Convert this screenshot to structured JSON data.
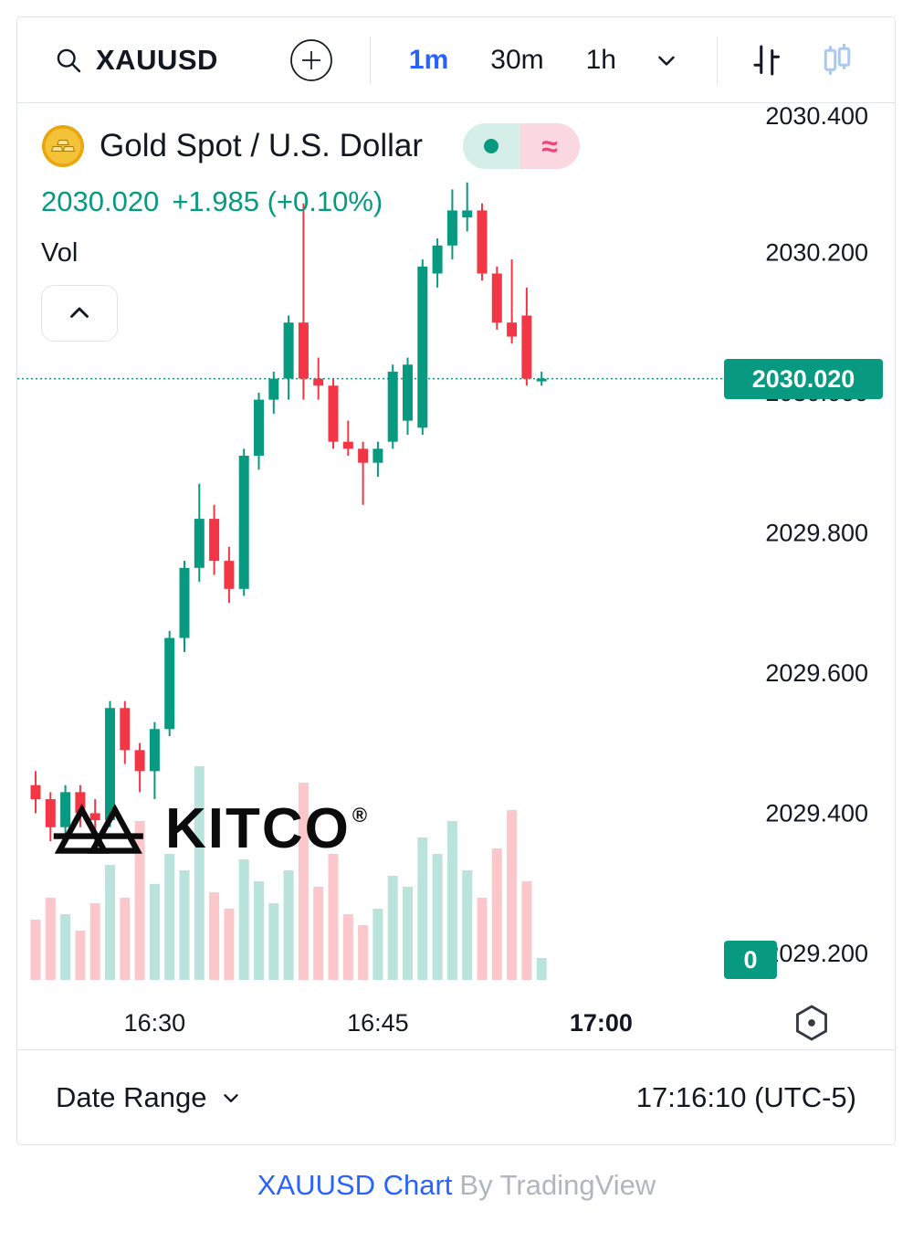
{
  "toolbar": {
    "symbol": "XAUUSD",
    "intervals": [
      {
        "label": "1m",
        "active": true
      },
      {
        "label": "30m",
        "active": false
      },
      {
        "label": "1h",
        "active": false
      }
    ]
  },
  "header": {
    "title": "Gold Spot / U.S. Dollar",
    "price": "2030.020",
    "change": "+1.985 (+0.10%)",
    "vol_label": "Vol",
    "approx": "≈"
  },
  "watermark": {
    "text": "KITCO",
    "reg": "®"
  },
  "axis": {
    "price_badge": "2030.020",
    "vol_badge": "0"
  },
  "bottom_bar": {
    "date_range_label": "Date Range",
    "clock": "17:16:10 (UTC-5)"
  },
  "footer": {
    "link": "XAUUSD Chart",
    "rest": "By TradingView"
  },
  "icons": {
    "search": "magnifier",
    "compare": "plus-circle",
    "interval_menu": "chevron-down",
    "bars_style": "ohlc-bars",
    "candles_style": "candlesticks",
    "collapse": "chevron-up",
    "status": "dot-and-approx",
    "time_settings": "hexagon-dot",
    "date_range": "chevron-down"
  },
  "colors": {
    "up": "#089981",
    "down": "#f23645",
    "accent_blue": "#2962ff",
    "badge": "#089981",
    "border": "#e0e3eb",
    "text": "#131722",
    "footer_muted": "#b2b5be",
    "pill_green_bg": "#d5efe8",
    "pill_pink_bg": "#fbd7e2"
  },
  "chart_data": {
    "type": "candlestick",
    "symbol": "XAUUSD",
    "title": "Gold Spot / U.S. Dollar",
    "interval": "1m",
    "last_price": 2030.02,
    "change": "+1.985",
    "change_pct": "+0.10%",
    "ylim": [
      2029.136,
      2030.413
    ],
    "y_ticks": [
      2030.4,
      2030.2,
      2030.0,
      2029.8,
      2029.6,
      2029.4,
      2029.2
    ],
    "x_ticks": [
      {
        "label": "16:30",
        "i": 8,
        "bold": false
      },
      {
        "label": "16:45",
        "i": 23,
        "bold": false
      },
      {
        "label": "17:00",
        "i": 38,
        "bold": true
      }
    ],
    "legend": "Vol",
    "grid": false,
    "candles": [
      {
        "t": "16:22",
        "o": 2029.44,
        "h": 2029.46,
        "l": 2029.4,
        "c": 2029.42,
        "v": 22
      },
      {
        "t": "16:23",
        "o": 2029.42,
        "h": 2029.43,
        "l": 2029.36,
        "c": 2029.38,
        "v": 30
      },
      {
        "t": "16:24",
        "o": 2029.38,
        "h": 2029.44,
        "l": 2029.37,
        "c": 2029.43,
        "v": 24
      },
      {
        "t": "16:25",
        "o": 2029.43,
        "h": 2029.44,
        "l": 2029.38,
        "c": 2029.4,
        "v": 18
      },
      {
        "t": "16:26",
        "o": 2029.4,
        "h": 2029.42,
        "l": 2029.35,
        "c": 2029.39,
        "v": 28
      },
      {
        "t": "16:27",
        "o": 2029.39,
        "h": 2029.56,
        "l": 2029.38,
        "c": 2029.55,
        "v": 42
      },
      {
        "t": "16:28",
        "o": 2029.55,
        "h": 2029.56,
        "l": 2029.47,
        "c": 2029.49,
        "v": 30
      },
      {
        "t": "16:29",
        "o": 2029.49,
        "h": 2029.5,
        "l": 2029.43,
        "c": 2029.46,
        "v": 58
      },
      {
        "t": "16:30",
        "o": 2029.46,
        "h": 2029.53,
        "l": 2029.42,
        "c": 2029.52,
        "v": 35
      },
      {
        "t": "16:31",
        "o": 2029.52,
        "h": 2029.66,
        "l": 2029.51,
        "c": 2029.65,
        "v": 46
      },
      {
        "t": "16:32",
        "o": 2029.65,
        "h": 2029.76,
        "l": 2029.63,
        "c": 2029.75,
        "v": 40
      },
      {
        "t": "16:33",
        "o": 2029.75,
        "h": 2029.87,
        "l": 2029.73,
        "c": 2029.82,
        "v": 78
      },
      {
        "t": "16:34",
        "o": 2029.82,
        "h": 2029.84,
        "l": 2029.74,
        "c": 2029.76,
        "v": 32
      },
      {
        "t": "16:35",
        "o": 2029.76,
        "h": 2029.78,
        "l": 2029.7,
        "c": 2029.72,
        "v": 26
      },
      {
        "t": "16:36",
        "o": 2029.72,
        "h": 2029.92,
        "l": 2029.71,
        "c": 2029.91,
        "v": 44
      },
      {
        "t": "16:37",
        "o": 2029.91,
        "h": 2030.0,
        "l": 2029.89,
        "c": 2029.99,
        "v": 36
      },
      {
        "t": "16:38",
        "o": 2029.99,
        "h": 2030.03,
        "l": 2029.97,
        "c": 2030.02,
        "v": 28
      },
      {
        "t": "16:39",
        "o": 2030.02,
        "h": 2030.11,
        "l": 2029.99,
        "c": 2030.1,
        "v": 40
      },
      {
        "t": "16:40",
        "o": 2030.1,
        "h": 2030.27,
        "l": 2029.99,
        "c": 2030.02,
        "v": 72
      },
      {
        "t": "16:41",
        "o": 2030.02,
        "h": 2030.05,
        "l": 2029.99,
        "c": 2030.01,
        "v": 34
      },
      {
        "t": "16:42",
        "o": 2030.01,
        "h": 2030.02,
        "l": 2029.92,
        "c": 2029.93,
        "v": 46
      },
      {
        "t": "16:43",
        "o": 2029.93,
        "h": 2029.96,
        "l": 2029.91,
        "c": 2029.92,
        "v": 24
      },
      {
        "t": "16:44",
        "o": 2029.92,
        "h": 2029.93,
        "l": 2029.84,
        "c": 2029.9,
        "v": 20
      },
      {
        "t": "16:45",
        "o": 2029.9,
        "h": 2029.93,
        "l": 2029.88,
        "c": 2029.92,
        "v": 26
      },
      {
        "t": "16:46",
        "o": 2029.93,
        "h": 2030.04,
        "l": 2029.92,
        "c": 2030.03,
        "v": 38
      },
      {
        "t": "16:47",
        "o": 2029.96,
        "h": 2030.05,
        "l": 2029.94,
        "c": 2030.04,
        "v": 34
      },
      {
        "t": "16:48",
        "o": 2029.95,
        "h": 2030.19,
        "l": 2029.94,
        "c": 2030.18,
        "v": 52
      },
      {
        "t": "16:49",
        "o": 2030.17,
        "h": 2030.22,
        "l": 2030.15,
        "c": 2030.21,
        "v": 46
      },
      {
        "t": "16:50",
        "o": 2030.21,
        "h": 2030.29,
        "l": 2030.19,
        "c": 2030.26,
        "v": 58
      },
      {
        "t": "16:51",
        "o": 2030.25,
        "h": 2030.3,
        "l": 2030.23,
        "c": 2030.26,
        "v": 40
      },
      {
        "t": "16:52",
        "o": 2030.26,
        "h": 2030.27,
        "l": 2030.16,
        "c": 2030.17,
        "v": 30
      },
      {
        "t": "16:53",
        "o": 2030.17,
        "h": 2030.18,
        "l": 2030.09,
        "c": 2030.1,
        "v": 48
      },
      {
        "t": "16:54",
        "o": 2030.1,
        "h": 2030.19,
        "l": 2030.07,
        "c": 2030.08,
        "v": 62
      },
      {
        "t": "16:55",
        "o": 2030.11,
        "h": 2030.15,
        "l": 2030.01,
        "c": 2030.02,
        "v": 36
      },
      {
        "t": "16:56",
        "o": 2030.02,
        "h": 2030.03,
        "l": 2030.01,
        "c": 2030.02,
        "v": 8
      }
    ]
  }
}
